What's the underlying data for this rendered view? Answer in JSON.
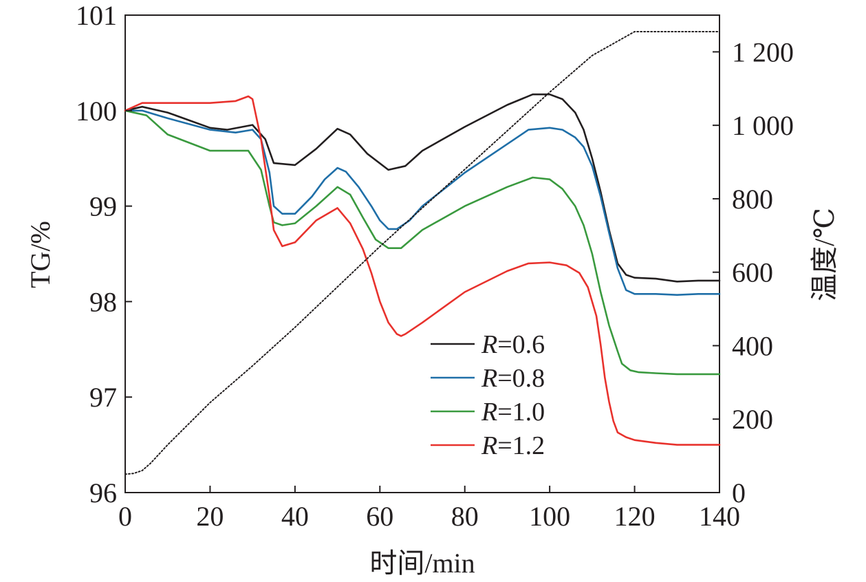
{
  "chart_data": {
    "type": "line",
    "xlabel": "时间/min",
    "ylabel": "TG/%",
    "y2label": "温度/℃",
    "xlim": [
      0,
      140
    ],
    "ylim": [
      96,
      101
    ],
    "y2lim": [
      0,
      1300
    ],
    "grid": false,
    "legend_position": "lower-center",
    "x_ticks": [
      0,
      20,
      40,
      60,
      80,
      100,
      120,
      140
    ],
    "x_tick_labels": [
      "0",
      "20",
      "40",
      "60",
      "80",
      "100",
      "120",
      "140"
    ],
    "y_ticks": [
      96,
      97,
      98,
      99,
      100,
      101
    ],
    "y_tick_labels": [
      "96",
      "97",
      "98",
      "99",
      "100",
      "101"
    ],
    "y2_ticks": [
      0,
      200,
      400,
      600,
      800,
      1000,
      1200
    ],
    "y2_tick_labels": [
      "0",
      "200",
      "400",
      "600",
      "800",
      "1 000",
      "1 200"
    ],
    "series": [
      {
        "name": "R=0.6",
        "label_var": "R",
        "label_value": "=0.6",
        "color": "#231f20",
        "axis": "left",
        "x": [
          0,
          4,
          10,
          20,
          24,
          30,
          33,
          35,
          40,
          45,
          50,
          53,
          57,
          62,
          66,
          70,
          80,
          90,
          96,
          100,
          103,
          106,
          108,
          110,
          112,
          114,
          116,
          118,
          120,
          125,
          130,
          135,
          140
        ],
        "y": [
          100.0,
          100.04,
          99.98,
          99.82,
          99.8,
          99.85,
          99.7,
          99.45,
          99.43,
          99.6,
          99.81,
          99.75,
          99.55,
          99.38,
          99.42,
          99.58,
          99.83,
          100.06,
          100.17,
          100.17,
          100.12,
          99.98,
          99.8,
          99.5,
          99.15,
          98.75,
          98.4,
          98.28,
          98.25,
          98.24,
          98.21,
          98.22,
          98.22
        ]
      },
      {
        "name": "R=0.8",
        "label_var": "R",
        "label_value": "=0.8",
        "color": "#1f6fa8",
        "axis": "left",
        "x": [
          0,
          4,
          10,
          20,
          26,
          30,
          32,
          34,
          35,
          37,
          40,
          44,
          47,
          50,
          52,
          55,
          58,
          60,
          62,
          64,
          67,
          70,
          80,
          90,
          95,
          100,
          103,
          106,
          108,
          110,
          112,
          114,
          116,
          118,
          120,
          125,
          130,
          135,
          140
        ],
        "y": [
          100.0,
          100.0,
          99.92,
          99.8,
          99.77,
          99.8,
          99.7,
          99.35,
          99.0,
          98.92,
          98.92,
          99.1,
          99.28,
          99.4,
          99.36,
          99.2,
          99.0,
          98.85,
          98.76,
          98.76,
          98.85,
          99.0,
          99.35,
          99.65,
          99.8,
          99.82,
          99.8,
          99.72,
          99.62,
          99.42,
          99.1,
          98.72,
          98.35,
          98.12,
          98.08,
          98.08,
          98.07,
          98.08,
          98.08
        ]
      },
      {
        "name": "R=1.0",
        "label_var": "R",
        "label_value": "=1.0",
        "color": "#3a9a3f",
        "axis": "left",
        "x": [
          0,
          5,
          10,
          20,
          26,
          29,
          32,
          34,
          35,
          37,
          40,
          45,
          50,
          53,
          56,
          59,
          62,
          65,
          70,
          80,
          90,
          96,
          100,
          103,
          106,
          108,
          110,
          112,
          114,
          116,
          117,
          119,
          121,
          125,
          130,
          135,
          140
        ],
        "y": [
          100.0,
          99.95,
          99.75,
          99.58,
          99.58,
          99.58,
          99.38,
          99.0,
          98.83,
          98.8,
          98.82,
          99.0,
          99.2,
          99.12,
          98.88,
          98.65,
          98.56,
          98.56,
          98.75,
          99.0,
          99.2,
          99.3,
          99.28,
          99.18,
          99.0,
          98.8,
          98.5,
          98.1,
          97.75,
          97.48,
          97.35,
          97.28,
          97.26,
          97.25,
          97.24,
          97.24,
          97.24
        ]
      },
      {
        "name": "R=1.2",
        "label_var": "R",
        "label_value": "=1.2",
        "color": "#e8322d",
        "axis": "left",
        "x": [
          0,
          4,
          10,
          20,
          26,
          29,
          30,
          32,
          34,
          35,
          37,
          40,
          45,
          50,
          53,
          56,
          58,
          60,
          62,
          64,
          65,
          66,
          70,
          80,
          90,
          95,
          100,
          104,
          107,
          109,
          111,
          112,
          113,
          114,
          115,
          116,
          118,
          120,
          125,
          130,
          135,
          140
        ],
        "y": [
          100.0,
          100.08,
          100.08,
          100.08,
          100.1,
          100.15,
          100.12,
          99.7,
          99.1,
          98.75,
          98.58,
          98.62,
          98.85,
          98.98,
          98.82,
          98.55,
          98.3,
          98.0,
          97.78,
          97.66,
          97.64,
          97.66,
          97.78,
          98.1,
          98.32,
          98.4,
          98.41,
          98.38,
          98.3,
          98.15,
          97.85,
          97.55,
          97.2,
          96.95,
          96.75,
          96.63,
          96.58,
          96.55,
          96.52,
          96.5,
          96.5,
          96.5
        ]
      },
      {
        "name": "温度",
        "color": "#231f20",
        "axis": "right",
        "dashed": true,
        "x": [
          0,
          2,
          4,
          6,
          10,
          20,
          30,
          40,
          50,
          60,
          70,
          80,
          90,
          100,
          110,
          120,
          125,
          130,
          135,
          140
        ],
        "y": [
          50,
          52,
          60,
          80,
          130,
          245,
          345,
          450,
          560,
          670,
          775,
          880,
          985,
          1090,
          1190,
          1255,
          1255,
          1255,
          1255,
          1255
        ]
      }
    ]
  }
}
